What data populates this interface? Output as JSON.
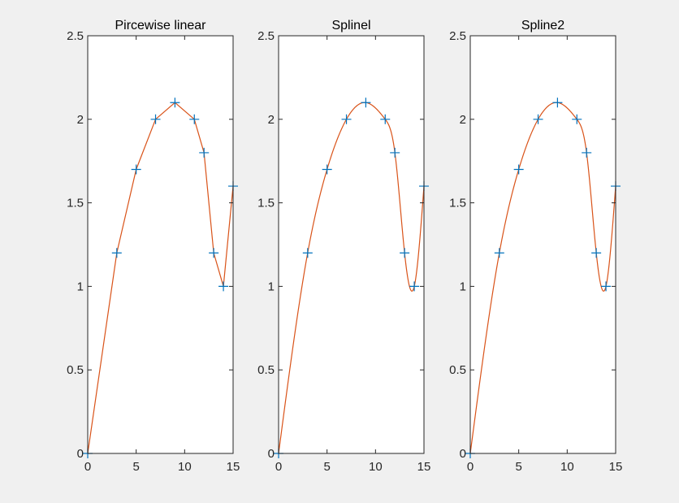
{
  "chart_data": [
    {
      "type": "line",
      "title": "Pircewise linear",
      "xlabel": "",
      "ylabel": "",
      "xlim": [
        0,
        15
      ],
      "ylim": [
        0,
        2.5
      ],
      "xticks": [
        "0",
        "5",
        "10",
        "15"
      ],
      "yticks": [
        "0",
        "0.5",
        "1",
        "1.5",
        "2",
        "2.5"
      ],
      "grid": false,
      "interpolation": "linear",
      "series": [
        {
          "marker": "+",
          "x": [
            0,
            3,
            5,
            7,
            9,
            11,
            12,
            13,
            14,
            15
          ],
          "y": [
            0,
            1.2,
            1.7,
            2.0,
            2.1,
            2.0,
            1.8,
            1.2,
            1.0,
            1.6
          ]
        }
      ]
    },
    {
      "type": "line",
      "title": "Splinel",
      "xlabel": "",
      "ylabel": "",
      "xlim": [
        0,
        15
      ],
      "ylim": [
        0,
        2.5
      ],
      "xticks": [
        "0",
        "5",
        "10",
        "15"
      ],
      "yticks": [
        "0",
        "0.5",
        "1",
        "1.5",
        "2",
        "2.5"
      ],
      "grid": false,
      "interpolation": "spline",
      "series": [
        {
          "marker": "+",
          "x": [
            0,
            3,
            5,
            7,
            9,
            11,
            12,
            13,
            14,
            15
          ],
          "y": [
            0,
            1.2,
            1.7,
            2.0,
            2.1,
            2.0,
            1.8,
            1.2,
            1.0,
            1.6
          ]
        }
      ]
    },
    {
      "type": "line",
      "title": "Spline2",
      "xlabel": "",
      "ylabel": "",
      "xlim": [
        0,
        15
      ],
      "ylim": [
        0,
        2.5
      ],
      "xticks": [
        "0",
        "5",
        "10",
        "15"
      ],
      "yticks": [
        "0",
        "0.5",
        "1",
        "1.5",
        "2",
        "2.5"
      ],
      "grid": false,
      "interpolation": "spline",
      "series": [
        {
          "marker": "+",
          "x": [
            0,
            3,
            5,
            7,
            9,
            11,
            12,
            13,
            14,
            15
          ],
          "y": [
            0,
            1.2,
            1.7,
            2.0,
            2.1,
            2.0,
            1.8,
            1.2,
            1.0,
            1.6
          ]
        }
      ]
    }
  ],
  "colors": {
    "background": "#f0f0f0",
    "axes_background": "#ffffff",
    "axis_line": "#262626",
    "marker": "#0072bd",
    "curve": "#d95319"
  }
}
